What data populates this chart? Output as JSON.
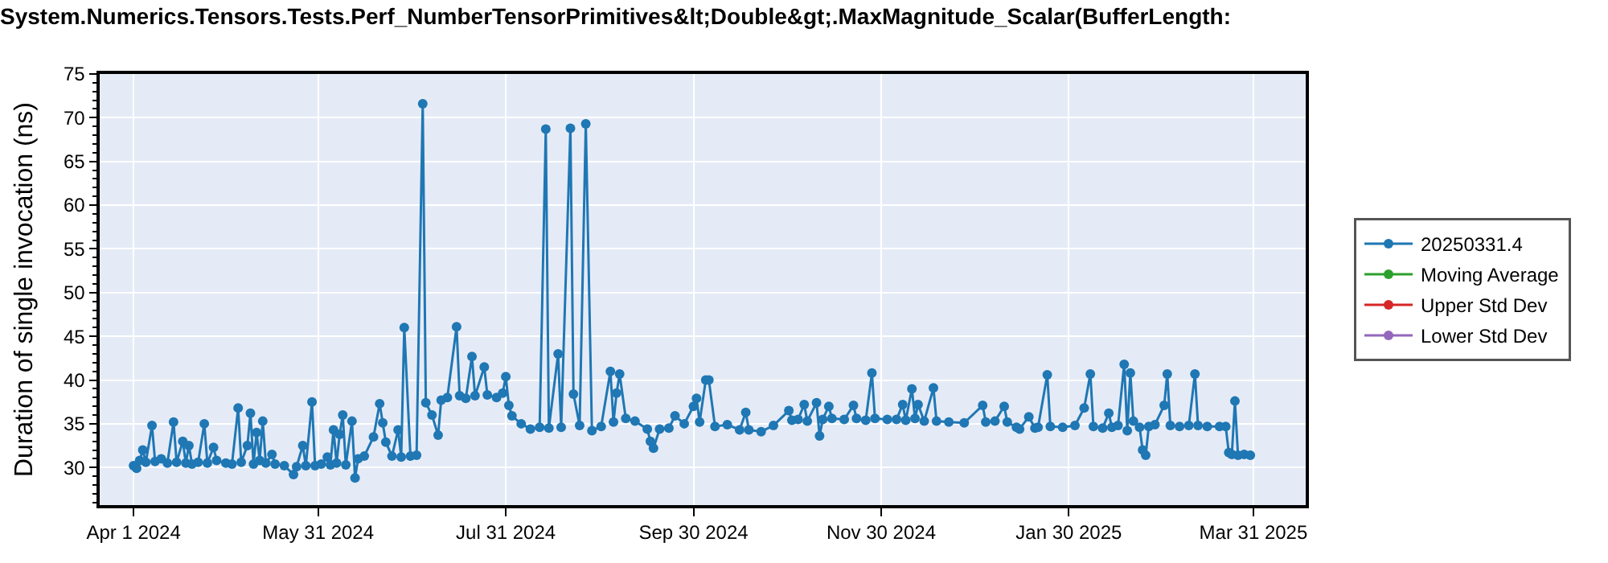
{
  "chart_data": {
    "type": "line",
    "title": "System.Numerics.Tensors.Tests.Perf_NumberTensorPrimitives&lt;Double&gt;.MaxMagnitude_Scalar(BufferLength:",
    "ylabel": "Duration of single invocation (ns)",
    "x": [
      "2024-04-01",
      "2024-04-02",
      "2024-04-03",
      "2024-04-04",
      "2024-04-05",
      "2024-04-07",
      "2024-04-08",
      "2024-04-10",
      "2024-04-12",
      "2024-04-14",
      "2024-04-15",
      "2024-04-17",
      "2024-04-18",
      "2024-04-19",
      "2024-04-20",
      "2024-04-22",
      "2024-04-24",
      "2024-04-25",
      "2024-04-27",
      "2024-04-28",
      "2024-05-01",
      "2024-05-03",
      "2024-05-05",
      "2024-05-06",
      "2024-05-08",
      "2024-05-09",
      "2024-05-10",
      "2024-05-11",
      "2024-05-12",
      "2024-05-13",
      "2024-05-14",
      "2024-05-16",
      "2024-05-17",
      "2024-05-20",
      "2024-05-23",
      "2024-05-24",
      "2024-05-26",
      "2024-05-27",
      "2024-05-29",
      "2024-05-30",
      "2024-06-01",
      "2024-06-03",
      "2024-06-04",
      "2024-06-05",
      "2024-06-06",
      "2024-06-07",
      "2024-06-08",
      "2024-06-09",
      "2024-06-11",
      "2024-06-12",
      "2024-06-13",
      "2024-06-15",
      "2024-06-18",
      "2024-06-20",
      "2024-06-21",
      "2024-06-22",
      "2024-06-24",
      "2024-06-26",
      "2024-06-27",
      "2024-06-28",
      "2024-06-30",
      "2024-07-02",
      "2024-07-04",
      "2024-07-05",
      "2024-07-07",
      "2024-07-09",
      "2024-07-10",
      "2024-07-12",
      "2024-07-15",
      "2024-07-16",
      "2024-07-18",
      "2024-07-20",
      "2024-07-21",
      "2024-07-24",
      "2024-07-25",
      "2024-07-28",
      "2024-07-30",
      "2024-07-31",
      "2024-08-01",
      "2024-08-02",
      "2024-08-05",
      "2024-08-08",
      "2024-08-11",
      "2024-08-13",
      "2024-08-14",
      "2024-08-17",
      "2024-08-18",
      "2024-08-21",
      "2024-08-22",
      "2024-08-24",
      "2024-08-26",
      "2024-08-28",
      "2024-08-31",
      "2024-09-03",
      "2024-09-04",
      "2024-09-05",
      "2024-09-06",
      "2024-09-08",
      "2024-09-11",
      "2024-09-15",
      "2024-09-16",
      "2024-09-17",
      "2024-09-19",
      "2024-09-22",
      "2024-09-24",
      "2024-09-27",
      "2024-09-30",
      "2024-10-01",
      "2024-10-02",
      "2024-10-04",
      "2024-10-05",
      "2024-10-07",
      "2024-10-11",
      "2024-10-15",
      "2024-10-17",
      "2024-10-18",
      "2024-10-22",
      "2024-10-26",
      "2024-10-31",
      "2024-11-01",
      "2024-11-03",
      "2024-11-05",
      "2024-11-06",
      "2024-11-09",
      "2024-11-10",
      "2024-11-11",
      "2024-11-13",
      "2024-11-14",
      "2024-11-18",
      "2024-11-21",
      "2024-11-22",
      "2024-11-25",
      "2024-11-27",
      "2024-11-28",
      "2024-12-02",
      "2024-12-05",
      "2024-12-07",
      "2024-12-08",
      "2024-12-10",
      "2024-12-11",
      "2024-12-12",
      "2024-12-14",
      "2024-12-17",
      "2024-12-18",
      "2024-12-22",
      "2024-12-27",
      "2025-01-02",
      "2025-01-03",
      "2025-01-06",
      "2025-01-09",
      "2025-01-10",
      "2025-01-13",
      "2025-01-14",
      "2025-01-17",
      "2025-01-19",
      "2025-01-20",
      "2025-01-23",
      "2025-01-24",
      "2025-01-28",
      "2025-02-01",
      "2025-02-04",
      "2025-02-06",
      "2025-02-07",
      "2025-02-10",
      "2025-02-12",
      "2025-02-13",
      "2025-02-15",
      "2025-02-17",
      "2025-02-18",
      "2025-02-19",
      "2025-02-20",
      "2025-02-22",
      "2025-02-23",
      "2025-02-24",
      "2025-02-25",
      "2025-02-27",
      "2025-03-02",
      "2025-03-03",
      "2025-03-04",
      "2025-03-07",
      "2025-03-10",
      "2025-03-12",
      "2025-03-13",
      "2025-03-16",
      "2025-03-20",
      "2025-03-22",
      "2025-03-23",
      "2025-03-24",
      "2025-03-25",
      "2025-03-26",
      "2025-03-28",
      "2025-03-30"
    ],
    "series": [
      {
        "name": "20250331.4",
        "color": "#1f77b4",
        "values": [
          30.2,
          29.9,
          30.8,
          32.0,
          30.6,
          34.8,
          30.7,
          31.0,
          30.5,
          35.2,
          30.6,
          33.0,
          30.5,
          32.5,
          30.4,
          30.6,
          35.0,
          30.5,
          32.3,
          30.8,
          30.5,
          30.4,
          36.8,
          30.6,
          32.5,
          36.2,
          30.4,
          34.0,
          30.8,
          35.3,
          30.5,
          31.5,
          30.4,
          30.2,
          29.2,
          30.1,
          32.5,
          30.2,
          37.5,
          30.2,
          30.4,
          31.2,
          30.3,
          34.3,
          30.5,
          33.8,
          36.0,
          30.3,
          35.3,
          28.8,
          31.0,
          31.3,
          33.5,
          37.3,
          35.1,
          32.9,
          31.3,
          34.3,
          31.2,
          46.0,
          31.3,
          31.4,
          71.6,
          37.4,
          36.0,
          33.7,
          37.7,
          38.0,
          46.1,
          38.2,
          37.9,
          42.7,
          38.2,
          41.5,
          38.3,
          38.0,
          38.5,
          40.4,
          37.1,
          35.9,
          35.0,
          34.4,
          34.6,
          68.7,
          34.5,
          43.0,
          34.6,
          68.8,
          38.4,
          34.8,
          69.3,
          34.2,
          34.7,
          41.0,
          35.2,
          38.5,
          40.7,
          35.6,
          35.3,
          34.4,
          33.0,
          32.2,
          34.4,
          34.5,
          35.9,
          35.0,
          37.0,
          37.9,
          35.2,
          40.0,
          40.0,
          34.7,
          34.9,
          34.3,
          36.3,
          34.3,
          34.1,
          34.8,
          36.5,
          35.4,
          35.5,
          37.2,
          35.3,
          37.4,
          33.6,
          35.5,
          37.0,
          35.6,
          35.5,
          37.1,
          35.6,
          35.4,
          40.8,
          35.6,
          35.5,
          35.5,
          37.2,
          35.4,
          39.0,
          35.6,
          37.2,
          35.3,
          39.1,
          35.3,
          35.2,
          35.1,
          37.1,
          35.2,
          35.3,
          37.0,
          35.2,
          34.6,
          34.4,
          35.8,
          34.5,
          34.6,
          40.6,
          34.7,
          34.6,
          34.8,
          36.8,
          40.7,
          34.7,
          34.5,
          36.2,
          34.6,
          34.8,
          41.8,
          34.2,
          40.8,
          35.3,
          34.6,
          32.0,
          31.4,
          34.7,
          34.9,
          37.1,
          40.7,
          34.8,
          34.7,
          34.8,
          40.7,
          34.8,
          34.7,
          34.7,
          34.7,
          31.7,
          31.5,
          37.6,
          31.4,
          31.5,
          31.4
        ]
      },
      {
        "name": "Moving Average",
        "color": "#2ca02c",
        "values": [
          null,
          null,
          null,
          null,
          null,
          null,
          null,
          null,
          null,
          null,
          null,
          null,
          null,
          null,
          null,
          null,
          null,
          null,
          null,
          null,
          null,
          null,
          null,
          null,
          null,
          null,
          null,
          null,
          null,
          null,
          null,
          null,
          null,
          null,
          null,
          null,
          null,
          null,
          null,
          null,
          null,
          null,
          null,
          null,
          null,
          null,
          null,
          null,
          null,
          null,
          null,
          null,
          null,
          null,
          null,
          null,
          null,
          null,
          null,
          null,
          null,
          null,
          null,
          null,
          null,
          null,
          null,
          null,
          null,
          null,
          null,
          null,
          null,
          null,
          null,
          null,
          null,
          null,
          null,
          null,
          null,
          null,
          null,
          null,
          null,
          null,
          null,
          null,
          null,
          null,
          null,
          null,
          null,
          null,
          null,
          null,
          null,
          null,
          null,
          null,
          null,
          null,
          null,
          null,
          null,
          null,
          null,
          null,
          null,
          null,
          null,
          null,
          null,
          null,
          null,
          null,
          null,
          null,
          null,
          null,
          null,
          null,
          null,
          null,
          null,
          null,
          null,
          null,
          null,
          null,
          null,
          null,
          null,
          null,
          null,
          null,
          null,
          null,
          null,
          null,
          null,
          null,
          null,
          null,
          null,
          null,
          null,
          null,
          null,
          null,
          null,
          null,
          null,
          null,
          null,
          null,
          null,
          null,
          null,
          null,
          null,
          null,
          null,
          null,
          null,
          null,
          null,
          null,
          null,
          null,
          null,
          null,
          null,
          null,
          null,
          null,
          null,
          null,
          null,
          null,
          null,
          null,
          null,
          null,
          null,
          null,
          null,
          null,
          null,
          null,
          null,
          null
        ]
      },
      {
        "name": "Upper Std Dev",
        "color": "#d62728",
        "values": [
          null,
          null,
          null,
          null,
          null,
          null,
          null,
          null,
          null,
          null,
          null,
          null,
          null,
          null,
          null,
          null,
          null,
          null,
          null,
          null,
          null,
          null,
          null,
          null,
          null,
          null,
          null,
          null,
          null,
          null,
          null,
          null,
          null,
          null,
          null,
          null,
          null,
          null,
          null,
          null,
          null,
          null,
          null,
          null,
          null,
          null,
          null,
          null,
          null,
          null,
          null,
          null,
          null,
          null,
          null,
          null,
          null,
          null,
          null,
          null,
          null,
          null,
          null,
          null,
          null,
          null,
          null,
          null,
          null,
          null,
          null,
          null,
          null,
          null,
          null,
          null,
          null,
          null,
          null,
          null,
          null,
          null,
          null,
          null,
          null,
          null,
          null,
          null,
          null,
          null,
          null,
          null,
          null,
          null,
          null,
          null,
          null,
          null,
          null,
          null,
          null,
          null,
          null,
          null,
          null,
          null,
          null,
          null,
          null,
          null,
          null,
          null,
          null,
          null,
          null,
          null,
          null,
          null,
          null,
          null,
          null,
          null,
          null,
          null,
          null,
          null,
          null,
          null,
          null,
          null,
          null,
          null,
          null,
          null,
          null,
          null,
          null,
          null,
          null,
          null,
          null,
          null,
          null,
          null,
          null,
          null,
          null,
          null,
          null,
          null,
          null,
          null,
          null,
          null,
          null,
          null,
          null,
          null,
          null,
          null,
          null,
          null,
          null,
          null,
          null,
          null,
          null,
          null,
          null,
          null,
          null,
          null,
          null,
          null,
          null,
          null,
          null,
          null,
          null,
          null,
          null,
          null,
          null,
          null,
          null,
          null,
          null,
          null,
          null,
          null,
          null,
          null
        ]
      },
      {
        "name": "Lower Std Dev",
        "color": "#9467bd",
        "values": [
          null,
          null,
          null,
          null,
          null,
          null,
          null,
          null,
          null,
          null,
          null,
          null,
          null,
          null,
          null,
          null,
          null,
          null,
          null,
          null,
          null,
          null,
          null,
          null,
          null,
          null,
          null,
          null,
          null,
          null,
          null,
          null,
          null,
          null,
          null,
          null,
          null,
          null,
          null,
          null,
          null,
          null,
          null,
          null,
          null,
          null,
          null,
          null,
          null,
          null,
          null,
          null,
          null,
          null,
          null,
          null,
          null,
          null,
          null,
          null,
          null,
          null,
          null,
          null,
          null,
          null,
          null,
          null,
          null,
          null,
          null,
          null,
          null,
          null,
          null,
          null,
          null,
          null,
          null,
          null,
          null,
          null,
          null,
          null,
          null,
          null,
          null,
          null,
          null,
          null,
          null,
          null,
          null,
          null,
          null,
          null,
          null,
          null,
          null,
          null,
          null,
          null,
          null,
          null,
          null,
          null,
          null,
          null,
          null,
          null,
          null,
          null,
          null,
          null,
          null,
          null,
          null,
          null,
          null,
          null,
          null,
          null,
          null,
          null,
          null,
          null,
          null,
          null,
          null,
          null,
          null,
          null,
          null,
          null,
          null,
          null,
          null,
          null,
          null,
          null,
          null,
          null,
          null,
          null,
          null,
          null,
          null,
          null,
          null,
          null,
          null,
          null,
          null,
          null,
          null,
          null,
          null,
          null,
          null,
          null,
          null,
          null,
          null,
          null,
          null,
          null,
          null,
          null,
          null,
          null,
          null,
          null,
          null,
          null,
          null,
          null,
          null,
          null,
          null,
          null,
          null,
          null,
          null,
          null,
          null,
          null,
          null,
          null,
          null,
          null,
          null,
          null
        ]
      }
    ],
    "xlim": [
      "2024-03-21",
      "2025-04-17"
    ],
    "xticks": [
      {
        "value": "2024-04-01",
        "label": "Apr 1 2024"
      },
      {
        "value": "2024-05-31",
        "label": "May 31 2024"
      },
      {
        "value": "2024-07-31",
        "label": "Jul 31 2024"
      },
      {
        "value": "2024-09-30",
        "label": "Sep 30 2024"
      },
      {
        "value": "2024-11-30",
        "label": "Nov 30 2024"
      },
      {
        "value": "2025-01-30",
        "label": "Jan 30 2025"
      },
      {
        "value": "2025-03-31",
        "label": "Mar 31 2025"
      }
    ],
    "ylim": [
      25.7,
      75
    ],
    "yticks": [
      30,
      35,
      40,
      45,
      50,
      55,
      60,
      65,
      70,
      75
    ],
    "grid": true,
    "legend": "right",
    "marker": "circle",
    "line_style": "solid"
  }
}
